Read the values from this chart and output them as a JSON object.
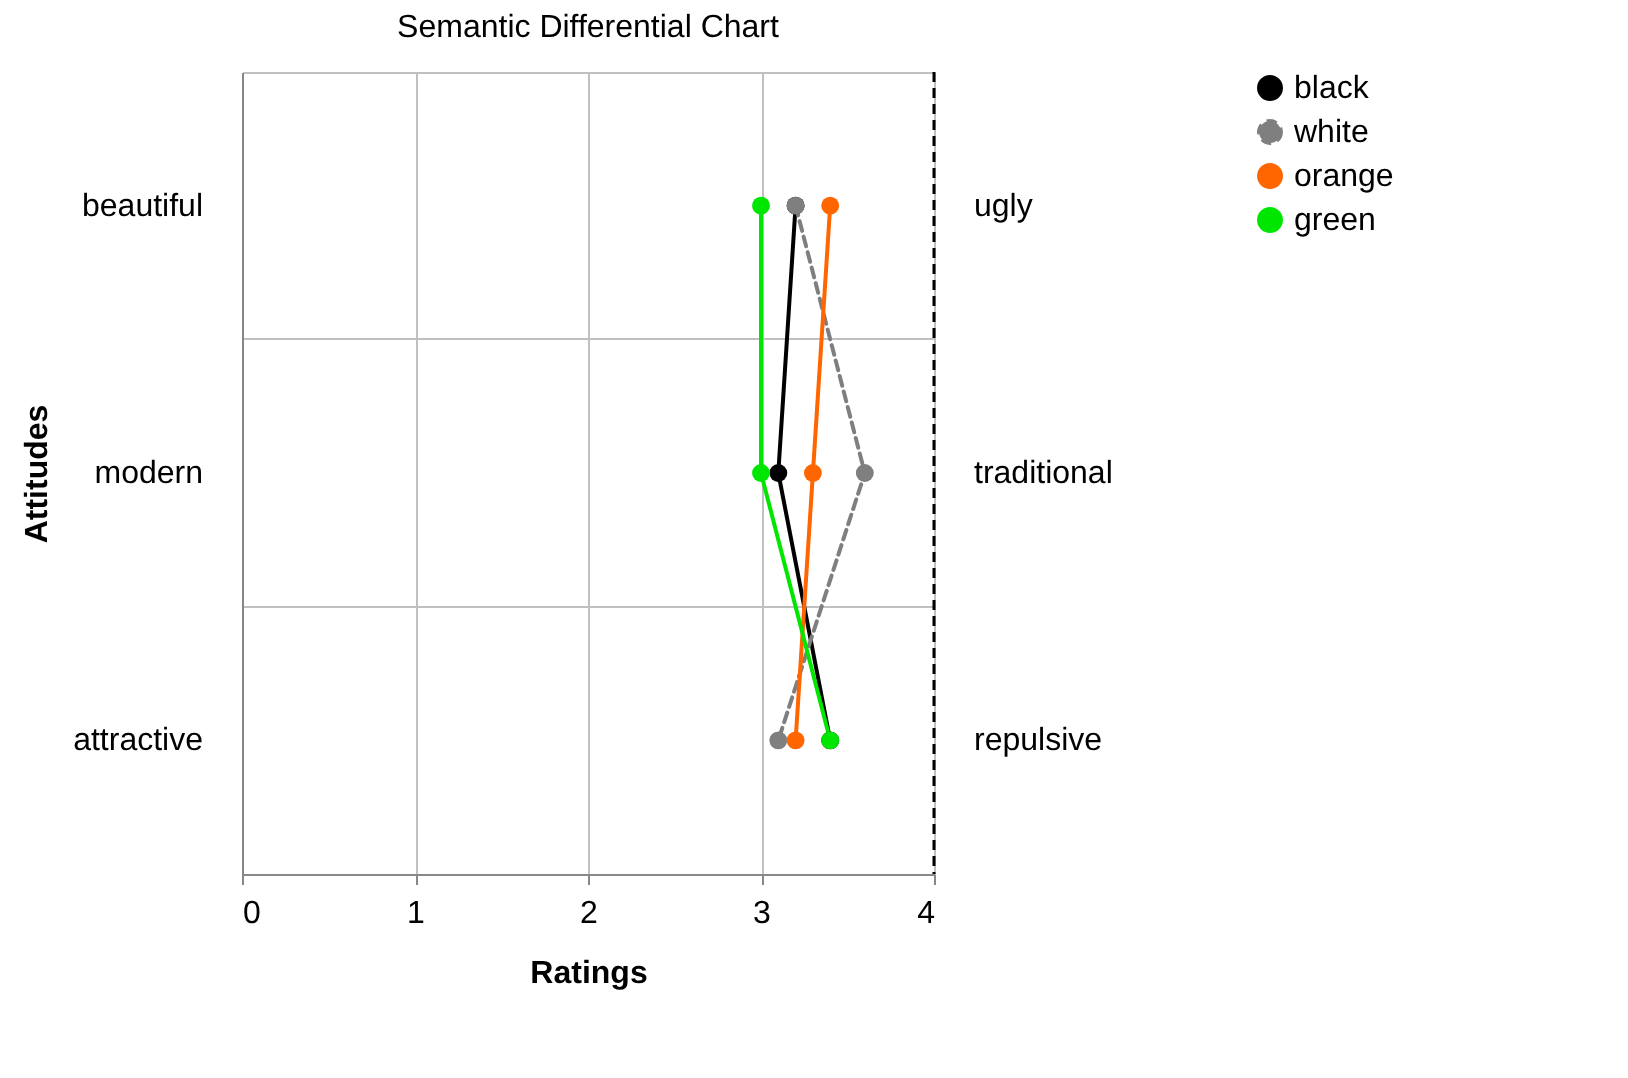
{
  "chart_data": {
    "type": "line",
    "title": "Semantic Differential Chart",
    "xlabel": "Ratings",
    "ylabel": "Attitudes",
    "orientation": "horizontal",
    "categories": [
      "beautiful",
      "modern",
      "attractive"
    ],
    "y2_categories": [
      "ugly",
      "traditional",
      "repulsive"
    ],
    "xlim": [
      0,
      4
    ],
    "xticks": [
      0,
      1,
      2,
      3,
      4
    ],
    "grid": true,
    "legend": "right",
    "marker": "circle",
    "series": [
      {
        "name": "black",
        "color": "#000000",
        "values": [
          3.2,
          3.1,
          3.4
        ]
      },
      {
        "name": "white",
        "color": "#7f7f7f",
        "values": [
          3.2,
          3.6,
          3.1
        ],
        "line_style": "dashed"
      },
      {
        "name": "orange",
        "color": "#ff6600",
        "values": [
          3.4,
          3.3,
          3.2
        ]
      },
      {
        "name": "green",
        "color": "#00e600",
        "values": [
          3.0,
          3.0,
          3.4
        ]
      }
    ],
    "ref_lines": [
      {
        "axis": "x",
        "value": 4,
        "color": "#000000",
        "line_style": "dashed"
      }
    ]
  }
}
